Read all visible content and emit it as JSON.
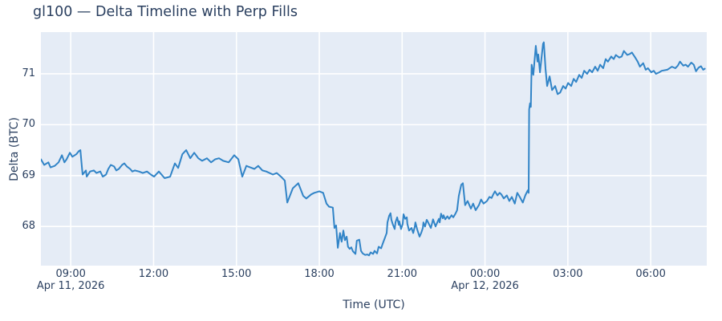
{
  "chart_data": {
    "type": "line",
    "title": "gl100 — Delta Timeline with Perp Fills",
    "xlabel": "Time (UTC)",
    "ylabel": "Delta (BTC)",
    "x_unit": "hours since 2026-04-11 08:00 UTC",
    "xlim": [
      -0.08,
      24.03
    ],
    "ylim": [
      67.23,
      71.82
    ],
    "grid": true,
    "legend_visible": false,
    "colors": {
      "line": "#3184c7",
      "plot_background": "#e5ecf6",
      "grid": "#ffffff",
      "text": "#2a3f5f",
      "page_background": "#ffffff"
    },
    "y_ticks": [
      68,
      69,
      70,
      71
    ],
    "x_ticks": [
      {
        "h": 1,
        "label": "09:00"
      },
      {
        "h": 4,
        "label": "12:00"
      },
      {
        "h": 7,
        "label": "15:00"
      },
      {
        "h": 10,
        "label": "18:00"
      },
      {
        "h": 13,
        "label": "21:00"
      },
      {
        "h": 16,
        "label": "00:00"
      },
      {
        "h": 19,
        "label": "03:00"
      },
      {
        "h": 22,
        "label": "06:00"
      }
    ],
    "date_labels": [
      {
        "h": 1,
        "label": "Apr 11, 2026"
      },
      {
        "h": 16,
        "label": "Apr 12, 2026"
      }
    ],
    "series": [
      {
        "name": "Delta (BTC)",
        "points": [
          [
            -0.08,
            69.32
          ],
          [
            0.04,
            69.21
          ],
          [
            0.19,
            69.26
          ],
          [
            0.27,
            69.16
          ],
          [
            0.42,
            69.19
          ],
          [
            0.56,
            69.26
          ],
          [
            0.68,
            69.4
          ],
          [
            0.77,
            69.26
          ],
          [
            0.85,
            69.32
          ],
          [
            0.97,
            69.45
          ],
          [
            1.06,
            69.37
          ],
          [
            1.2,
            69.42
          ],
          [
            1.29,
            69.48
          ],
          [
            1.35,
            69.5
          ],
          [
            1.41,
            69.13
          ],
          [
            1.43,
            69.02
          ],
          [
            1.55,
            69.1
          ],
          [
            1.58,
            68.98
          ],
          [
            1.7,
            69.08
          ],
          [
            1.84,
            69.1
          ],
          [
            1.93,
            69.05
          ],
          [
            2.07,
            69.08
          ],
          [
            2.16,
            68.98
          ],
          [
            2.28,
            69.02
          ],
          [
            2.36,
            69.13
          ],
          [
            2.45,
            69.21
          ],
          [
            2.57,
            69.18
          ],
          [
            2.65,
            69.1
          ],
          [
            2.74,
            69.13
          ],
          [
            2.86,
            69.21
          ],
          [
            2.94,
            69.24
          ],
          [
            3.03,
            69.18
          ],
          [
            3.15,
            69.13
          ],
          [
            3.23,
            69.08
          ],
          [
            3.32,
            69.1
          ],
          [
            3.47,
            69.08
          ],
          [
            3.61,
            69.05
          ],
          [
            3.76,
            69.08
          ],
          [
            3.9,
            69.02
          ],
          [
            4.02,
            68.98
          ],
          [
            4.19,
            69.08
          ],
          [
            4.4,
            68.95
          ],
          [
            4.6,
            68.98
          ],
          [
            4.77,
            69.24
          ],
          [
            4.89,
            69.15
          ],
          [
            5.04,
            69.42
          ],
          [
            5.18,
            69.5
          ],
          [
            5.33,
            69.34
          ],
          [
            5.47,
            69.45
          ],
          [
            5.62,
            69.34
          ],
          [
            5.76,
            69.29
          ],
          [
            5.93,
            69.34
          ],
          [
            6.08,
            69.26
          ],
          [
            6.23,
            69.32
          ],
          [
            6.37,
            69.34
          ],
          [
            6.52,
            69.29
          ],
          [
            6.72,
            69.26
          ],
          [
            6.92,
            69.4
          ],
          [
            7.07,
            69.32
          ],
          [
            7.21,
            68.98
          ],
          [
            7.36,
            69.19
          ],
          [
            7.5,
            69.16
          ],
          [
            7.65,
            69.13
          ],
          [
            7.79,
            69.19
          ],
          [
            7.94,
            69.1
          ],
          [
            8.08,
            69.08
          ],
          [
            8.32,
            69.02
          ],
          [
            8.46,
            69.05
          ],
          [
            8.61,
            68.98
          ],
          [
            8.75,
            68.9
          ],
          [
            8.84,
            68.47
          ],
          [
            9.04,
            68.75
          ],
          [
            9.24,
            68.85
          ],
          [
            9.42,
            68.6
          ],
          [
            9.53,
            68.55
          ],
          [
            9.71,
            68.63
          ],
          [
            9.82,
            68.66
          ],
          [
            10,
            68.69
          ],
          [
            10.14,
            68.66
          ],
          [
            10.26,
            68.45
          ],
          [
            10.35,
            68.39
          ],
          [
            10.49,
            68.37
          ],
          [
            10.55,
            67.97
          ],
          [
            10.61,
            68.02
          ],
          [
            10.67,
            67.58
          ],
          [
            10.75,
            67.87
          ],
          [
            10.81,
            67.7
          ],
          [
            10.87,
            67.92
          ],
          [
            10.93,
            67.73
          ],
          [
            10.99,
            67.8
          ],
          [
            11.04,
            67.6
          ],
          [
            11.1,
            67.56
          ],
          [
            11.16,
            67.59
          ],
          [
            11.22,
            67.51
          ],
          [
            11.31,
            67.46
          ],
          [
            11.36,
            67.72
          ],
          [
            11.45,
            67.74
          ],
          [
            11.51,
            67.52
          ],
          [
            11.57,
            67.47
          ],
          [
            11.66,
            67.44
          ],
          [
            11.74,
            67.45
          ],
          [
            11.8,
            67.43
          ],
          [
            11.86,
            67.49
          ],
          [
            11.95,
            67.46
          ],
          [
            12,
            67.52
          ],
          [
            12.09,
            67.47
          ],
          [
            12.15,
            67.6
          ],
          [
            12.24,
            67.57
          ],
          [
            12.29,
            67.65
          ],
          [
            12.38,
            67.78
          ],
          [
            12.44,
            67.87
          ],
          [
            12.47,
            68.08
          ],
          [
            12.53,
            68.21
          ],
          [
            12.58,
            68.26
          ],
          [
            12.61,
            68.13
          ],
          [
            12.67,
            68.03
          ],
          [
            12.73,
            67.95
          ],
          [
            12.76,
            68.08
          ],
          [
            12.82,
            68.18
          ],
          [
            12.88,
            68.03
          ],
          [
            12.9,
            68.1
          ],
          [
            12.96,
            67.95
          ],
          [
            13.02,
            68.05
          ],
          [
            13.05,
            68.24
          ],
          [
            13.11,
            68.15
          ],
          [
            13.17,
            68.18
          ],
          [
            13.19,
            68.05
          ],
          [
            13.25,
            67.92
          ],
          [
            13.34,
            67.97
          ],
          [
            13.4,
            67.87
          ],
          [
            13.46,
            68
          ],
          [
            13.48,
            68.08
          ],
          [
            13.54,
            67.95
          ],
          [
            13.63,
            67.8
          ],
          [
            13.69,
            67.87
          ],
          [
            13.75,
            67.97
          ],
          [
            13.77,
            68.08
          ],
          [
            13.83,
            68
          ],
          [
            13.89,
            68.13
          ],
          [
            13.92,
            68.1
          ],
          [
            14.04,
            67.97
          ],
          [
            14.07,
            68.03
          ],
          [
            14.12,
            68.14
          ],
          [
            14.21,
            68
          ],
          [
            14.33,
            68.15
          ],
          [
            14.36,
            68.08
          ],
          [
            14.41,
            68.25
          ],
          [
            14.47,
            68.16
          ],
          [
            14.5,
            68.22
          ],
          [
            14.56,
            68.14
          ],
          [
            14.64,
            68.2
          ],
          [
            14.7,
            68.15
          ],
          [
            14.79,
            68.22
          ],
          [
            14.85,
            68.18
          ],
          [
            14.93,
            68.25
          ],
          [
            14.99,
            68.32
          ],
          [
            15.05,
            68.6
          ],
          [
            15.14,
            68.82
          ],
          [
            15.2,
            68.85
          ],
          [
            15.28,
            68.42
          ],
          [
            15.37,
            68.5
          ],
          [
            15.49,
            68.35
          ],
          [
            15.57,
            68.45
          ],
          [
            15.66,
            68.32
          ],
          [
            15.78,
            68.42
          ],
          [
            15.86,
            68.53
          ],
          [
            15.95,
            68.45
          ],
          [
            16.07,
            68.5
          ],
          [
            16.16,
            68.58
          ],
          [
            16.24,
            68.56
          ],
          [
            16.3,
            68.63
          ],
          [
            16.36,
            68.69
          ],
          [
            16.45,
            68.61
          ],
          [
            16.53,
            68.66
          ],
          [
            16.59,
            68.63
          ],
          [
            16.68,
            68.55
          ],
          [
            16.79,
            68.61
          ],
          [
            16.88,
            68.5
          ],
          [
            16.97,
            68.58
          ],
          [
            17.08,
            68.45
          ],
          [
            17.17,
            68.66
          ],
          [
            17.26,
            68.58
          ],
          [
            17.37,
            68.47
          ],
          [
            17.46,
            68.61
          ],
          [
            17.55,
            68.71
          ],
          [
            17.58,
            68.66
          ],
          [
            17.6,
            70.3
          ],
          [
            17.63,
            70.42
          ],
          [
            17.66,
            70.35
          ],
          [
            17.69,
            71.18
          ],
          [
            17.75,
            70.98
          ],
          [
            17.84,
            71.55
          ],
          [
            17.9,
            71.24
          ],
          [
            17.93,
            71.38
          ],
          [
            17.99,
            71.03
          ],
          [
            18.1,
            71.59
          ],
          [
            18.13,
            71.62
          ],
          [
            18.19,
            71.1
          ],
          [
            18.25,
            70.76
          ],
          [
            18.34,
            70.95
          ],
          [
            18.43,
            70.68
          ],
          [
            18.54,
            70.76
          ],
          [
            18.63,
            70.6
          ],
          [
            18.72,
            70.63
          ],
          [
            18.83,
            70.76
          ],
          [
            18.92,
            70.71
          ],
          [
            19.01,
            70.82
          ],
          [
            19.12,
            70.76
          ],
          [
            19.21,
            70.9
          ],
          [
            19.3,
            70.84
          ],
          [
            19.41,
            70.98
          ],
          [
            19.5,
            70.92
          ],
          [
            19.59,
            71.06
          ],
          [
            19.7,
            71
          ],
          [
            19.79,
            71.08
          ],
          [
            19.88,
            71.03
          ],
          [
            19.99,
            71.14
          ],
          [
            20.08,
            71.06
          ],
          [
            20.17,
            71.18
          ],
          [
            20.28,
            71.11
          ],
          [
            20.37,
            71.29
          ],
          [
            20.45,
            71.24
          ],
          [
            20.57,
            71.34
          ],
          [
            20.66,
            71.29
          ],
          [
            20.74,
            71.37
          ],
          [
            20.86,
            71.32
          ],
          [
            20.95,
            71.34
          ],
          [
            21.03,
            71.45
          ],
          [
            21.15,
            71.37
          ],
          [
            21.24,
            71.39
          ],
          [
            21.32,
            71.42
          ],
          [
            21.44,
            71.32
          ],
          [
            21.53,
            71.24
          ],
          [
            21.61,
            71.14
          ],
          [
            21.73,
            71.21
          ],
          [
            21.82,
            71.08
          ],
          [
            21.9,
            71.11
          ],
          [
            22.02,
            71.03
          ],
          [
            22.11,
            71.06
          ],
          [
            22.19,
            71
          ],
          [
            22.31,
            71.03
          ],
          [
            22.4,
            71.06
          ],
          [
            22.6,
            71.08
          ],
          [
            22.77,
            71.14
          ],
          [
            22.89,
            71.11
          ],
          [
            22.98,
            71.16
          ],
          [
            23.06,
            71.24
          ],
          [
            23.18,
            71.16
          ],
          [
            23.27,
            71.18
          ],
          [
            23.35,
            71.14
          ],
          [
            23.47,
            71.22
          ],
          [
            23.56,
            71.18
          ],
          [
            23.64,
            71.05
          ],
          [
            23.73,
            71.12
          ],
          [
            23.82,
            71.15
          ],
          [
            23.9,
            71.08
          ],
          [
            23.96,
            71.1
          ]
        ]
      }
    ]
  }
}
